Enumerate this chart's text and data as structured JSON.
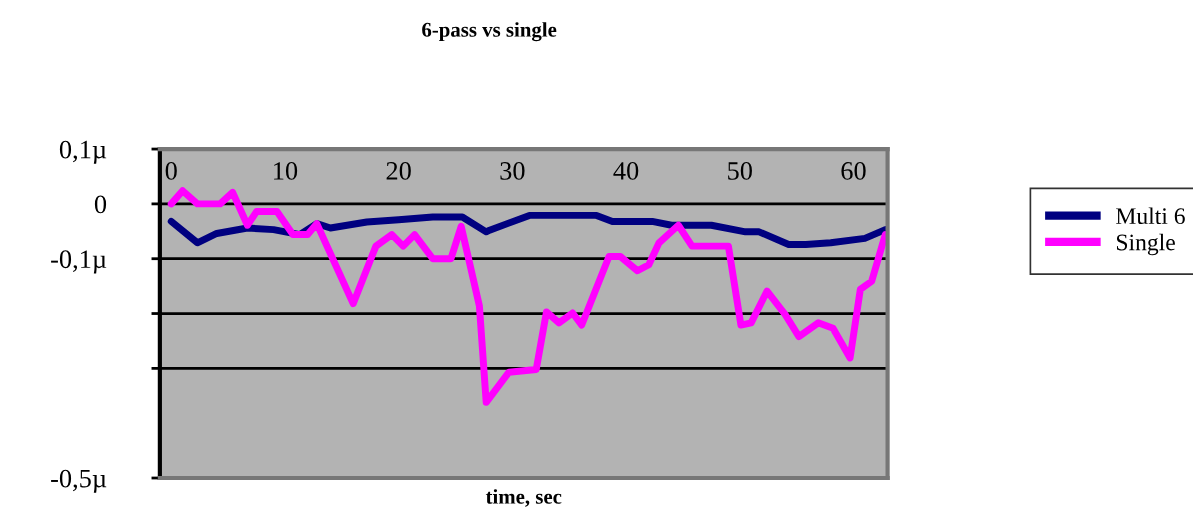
{
  "chart_data": {
    "type": "line",
    "title": "6-pass vs single",
    "xlabel": "time, sec",
    "xlim": [
      -1,
      63
    ],
    "xticks": [
      0,
      10,
      20,
      30,
      40,
      50,
      60
    ],
    "ylim": [
      -0.5,
      0.1
    ],
    "yticks": [
      {
        "value": 0.1,
        "label": "0,1µ"
      },
      0,
      {
        "value": -0.1,
        "label": "-0,1µ"
      },
      {
        "value": -0.2,
        "label": null
      },
      {
        "value": -0.3,
        "label": null
      },
      {
        "value": -0.5,
        "label": "-0,5µ"
      }
    ],
    "grid": "y",
    "legend": "right",
    "marker": "none",
    "line_style": "solid",
    "series": [
      {
        "name": "Multi 6",
        "color": "#000080",
        "x": [
          0,
          2.3,
          4,
          6.7,
          9,
          11.3,
          12.8,
          14,
          17.2,
          20,
          23,
          25.6,
          27.7,
          28,
          31.5,
          37.4,
          38.8,
          42.3,
          44,
          47.5,
          50.5,
          51.7,
          54.3,
          55.8,
          58,
          61,
          62.8
        ],
        "values": [
          -0.032,
          -0.071,
          -0.054,
          -0.044,
          -0.047,
          -0.056,
          -0.036,
          -0.044,
          -0.033,
          -0.029,
          -0.024,
          -0.024,
          -0.051,
          -0.048,
          -0.021,
          -0.021,
          -0.032,
          -0.032,
          -0.039,
          -0.039,
          -0.051,
          -0.051,
          -0.074,
          -0.074,
          -0.071,
          -0.063,
          -0.047
        ]
      },
      {
        "name": "Single",
        "color": "#ff00ff",
        "x": [
          0,
          1,
          2.3,
          4.3,
          5.4,
          6.7,
          7.5,
          9.3,
          10.7,
          12,
          12.8,
          16,
          18,
          19.4,
          20.4,
          21.4,
          23,
          24.6,
          25.5,
          27.1,
          27.7,
          29.7,
          32.1,
          33,
          34.1,
          35.3,
          36.1,
          38.5,
          39.5,
          41,
          42,
          42.9,
          44.6,
          45.8,
          49,
          50.1,
          51,
          52.4,
          54,
          55.2,
          56.9,
          58.2,
          59.7,
          60.6,
          61.6,
          62.8
        ],
        "values": [
          0,
          0.024,
          0,
          0,
          0.021,
          -0.039,
          -0.014,
          -0.014,
          -0.056,
          -0.056,
          -0.036,
          -0.182,
          -0.077,
          -0.056,
          -0.077,
          -0.056,
          -0.1,
          -0.1,
          -0.041,
          -0.186,
          -0.362,
          -0.307,
          -0.302,
          -0.197,
          -0.217,
          -0.199,
          -0.221,
          -0.096,
          -0.096,
          -0.122,
          -0.111,
          -0.071,
          -0.039,
          -0.077,
          -0.077,
          -0.221,
          -0.217,
          -0.159,
          -0.202,
          -0.242,
          -0.217,
          -0.227,
          -0.281,
          -0.156,
          -0.141,
          -0.056
        ]
      }
    ]
  }
}
